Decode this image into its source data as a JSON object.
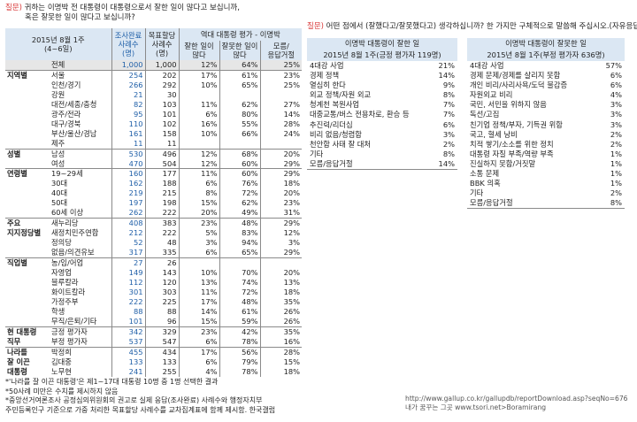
{
  "question_left": {
    "tag": "질문)",
    "line1": "귀하는 이명박 전 대통령이 대통령으로서 잘한 일이 많다고 보십니까,",
    "line2": "혹은 잘못한 일이 많다고 보십니까?"
  },
  "question_right": {
    "tag": "질문)",
    "text": "어떤 점에서 (잘했다고/잘못했다고) 생각하십니까? 한 가지만 구체적으로 말씀해 주십시오.(자유응답)"
  },
  "left_table": {
    "period": "2015년 8월 1주",
    "period_sub": "(4~6일)",
    "col_sample": [
      "조사완료",
      "사례수",
      "(명)"
    ],
    "col_target": [
      "목표할당",
      "사례수",
      "(명)"
    ],
    "col_group": "역대 대통령 평가 - 이명박",
    "col_good": [
      "잘한 일이",
      "많다"
    ],
    "col_bad": [
      "잘못한 일이",
      "많다"
    ],
    "col_dk": [
      "모름/",
      "응답거절"
    ],
    "rows": [
      {
        "cat": "",
        "label": "전체",
        "n": "1,000",
        "t": "1,000",
        "good": "12%",
        "bad": "64%",
        "dk": "25%",
        "total": true
      },
      {
        "cat": "지역별",
        "label": "서울",
        "n": "254",
        "t": "202",
        "good": "17%",
        "bad": "61%",
        "dk": "23%",
        "sep": true
      },
      {
        "cat": "",
        "label": "인천/경기",
        "n": "266",
        "t": "292",
        "good": "10%",
        "bad": "65%",
        "dk": "25%"
      },
      {
        "cat": "",
        "label": "강원",
        "n": "21",
        "t": "30",
        "good": "",
        "bad": "",
        "dk": ""
      },
      {
        "cat": "",
        "label": "대전/세종/충청",
        "n": "82",
        "t": "103",
        "good": "11%",
        "bad": "62%",
        "dk": "27%"
      },
      {
        "cat": "",
        "label": "광주/전라",
        "n": "95",
        "t": "101",
        "good": "6%",
        "bad": "80%",
        "dk": "14%"
      },
      {
        "cat": "",
        "label": "대구/경북",
        "n": "110",
        "t": "102",
        "good": "16%",
        "bad": "55%",
        "dk": "28%"
      },
      {
        "cat": "",
        "label": "부산/울산/경남",
        "n": "161",
        "t": "158",
        "good": "10%",
        "bad": "66%",
        "dk": "24%"
      },
      {
        "cat": "",
        "label": "제주",
        "n": "11",
        "t": "11",
        "good": "",
        "bad": "",
        "dk": ""
      },
      {
        "cat": "성별",
        "label": "남성",
        "n": "530",
        "t": "496",
        "good": "12%",
        "bad": "68%",
        "dk": "20%",
        "sep": true
      },
      {
        "cat": "",
        "label": "여성",
        "n": "470",
        "t": "504",
        "good": "12%",
        "bad": "60%",
        "dk": "29%"
      },
      {
        "cat": "연령별",
        "label": "19~29세",
        "n": "160",
        "t": "177",
        "good": "11%",
        "bad": "60%",
        "dk": "29%",
        "sep": true
      },
      {
        "cat": "",
        "label": "30대",
        "n": "162",
        "t": "188",
        "good": "6%",
        "bad": "76%",
        "dk": "18%"
      },
      {
        "cat": "",
        "label": "40대",
        "n": "219",
        "t": "215",
        "good": "8%",
        "bad": "72%",
        "dk": "20%"
      },
      {
        "cat": "",
        "label": "50대",
        "n": "197",
        "t": "198",
        "good": "15%",
        "bad": "62%",
        "dk": "23%"
      },
      {
        "cat": "",
        "label": "60세 이상",
        "n": "262",
        "t": "222",
        "good": "20%",
        "bad": "49%",
        "dk": "31%"
      },
      {
        "cat": "주요",
        "label": "새누리당",
        "n": "408",
        "t": "383",
        "good": "23%",
        "bad": "48%",
        "dk": "29%",
        "sep": true
      },
      {
        "cat": "지지정당별",
        "label": "새정치민주연합",
        "n": "212",
        "t": "222",
        "good": "5%",
        "bad": "83%",
        "dk": "12%"
      },
      {
        "cat": "",
        "label": "정의당",
        "n": "52",
        "t": "48",
        "good": "3%",
        "bad": "94%",
        "dk": "3%"
      },
      {
        "cat": "",
        "label": "없음/의견유보",
        "n": "317",
        "t": "335",
        "good": "6%",
        "bad": "65%",
        "dk": "29%"
      },
      {
        "cat": "직업별",
        "label": "농/임/어업",
        "n": "27",
        "t": "26",
        "good": "",
        "bad": "",
        "dk": "",
        "sep": true
      },
      {
        "cat": "",
        "label": "자영업",
        "n": "149",
        "t": "143",
        "good": "10%",
        "bad": "70%",
        "dk": "20%"
      },
      {
        "cat": "",
        "label": "블루칼라",
        "n": "112",
        "t": "120",
        "good": "13%",
        "bad": "74%",
        "dk": "13%"
      },
      {
        "cat": "",
        "label": "화이트칼라",
        "n": "301",
        "t": "303",
        "good": "11%",
        "bad": "72%",
        "dk": "18%"
      },
      {
        "cat": "",
        "label": "가정주부",
        "n": "222",
        "t": "225",
        "good": "17%",
        "bad": "48%",
        "dk": "35%"
      },
      {
        "cat": "",
        "label": "학생",
        "n": "88",
        "t": "88",
        "good": "14%",
        "bad": "61%",
        "dk": "26%"
      },
      {
        "cat": "",
        "label": "무직/은퇴/기타",
        "n": "101",
        "t": "96",
        "good": "15%",
        "bad": "59%",
        "dk": "26%"
      },
      {
        "cat": "현 대통령",
        "label": "긍정 평가자",
        "n": "342",
        "t": "329",
        "good": "23%",
        "bad": "42%",
        "dk": "35%",
        "sep": true
      },
      {
        "cat": "직무",
        "label": "부정 평가자",
        "n": "537",
        "t": "547",
        "good": "6%",
        "bad": "78%",
        "dk": "16%"
      },
      {
        "cat": "나라를",
        "label": "박정희",
        "n": "455",
        "t": "434",
        "good": "17%",
        "bad": "56%",
        "dk": "28%",
        "sep": true
      },
      {
        "cat": "잘 이끈",
        "label": "김대중",
        "n": "133",
        "t": "133",
        "good": "6%",
        "bad": "79%",
        "dk": "15%"
      },
      {
        "cat": "대통령",
        "label": "노무현",
        "n": "241",
        "t": "255",
        "good": "4%",
        "bad": "78%",
        "dk": "18%"
      }
    ]
  },
  "good_table": {
    "title": "이명박 대통령이 잘한 일",
    "subtitle": "2015년 8월 1주(긍정 평가자 119명)",
    "rows": [
      {
        "label": "4대강 사업",
        "value": "21%"
      },
      {
        "label": "경제 정책",
        "value": "14%"
      },
      {
        "label": "열심히 한다",
        "value": "9%"
      },
      {
        "label": "외교 정책/자원 외교",
        "value": "8%"
      },
      {
        "label": "청계천 복원사업",
        "value": "7%"
      },
      {
        "label": "대중교통/버스 전용차로, 환승 등",
        "value": "7%"
      },
      {
        "label": "추진력/리더십",
        "value": "6%"
      },
      {
        "label": "비리 없음/청렴함",
        "value": "3%"
      },
      {
        "label": "천안함 사태 잘 대처",
        "value": "2%"
      },
      {
        "label": "기타",
        "value": "8%"
      },
      {
        "label": "모름/응답거절",
        "value": "14%"
      }
    ]
  },
  "bad_table": {
    "title": "이명박 대통령이 잘못한 일",
    "subtitle": "2015년 8월 1주(부정 평가자 636명)",
    "rows": [
      {
        "label": "4대강 사업",
        "value": "57%"
      },
      {
        "label": "경제 문제/경제를 살리지 못함",
        "value": "6%"
      },
      {
        "label": "개인 비리/사리사욕/도덕 불감증",
        "value": "6%"
      },
      {
        "label": "자원외교 비리",
        "value": "4%"
      },
      {
        "label": "국민, 서민을 위하지 않음",
        "value": "3%"
      },
      {
        "label": "독선/고집",
        "value": "3%"
      },
      {
        "label": "친기업 정책/부자, 기득권 위함",
        "value": "3%"
      },
      {
        "label": "국고, 혈세 낭비",
        "value": "2%"
      },
      {
        "label": "치적 쌓기/소소를 위한 정치",
        "value": "2%"
      },
      {
        "label": "대통령 자질 부족/역량 부족",
        "value": "1%"
      },
      {
        "label": "진실하지 못함/거짓말",
        "value": "1%"
      },
      {
        "label": "소통 문제",
        "value": "1%"
      },
      {
        "label": "BBK 의혹",
        "value": "1%"
      },
      {
        "label": "기타",
        "value": "2%"
      },
      {
        "label": "모름/응답거절",
        "value": "8%"
      }
    ]
  },
  "notes": [
    "*'나라를 잘 이끈 대통령'은 제1~17대 대통령 10명 중 1명 선택한 결과",
    "*50사례 미만은 수치를 제시하지 않음",
    "*중앙선거여론조사 공정심의위원회의 권고로 실제 응답(조사완료) 사례수와  행정자치부",
    "  주민등록인구 기준으로 가중 처리한 목표할당 사례수를 교차집계표에 함께 제시함. 한국갤럽"
  ],
  "source": {
    "url": "http://www.gallup.co.kr/gallupdb/reportDownload.asp?seqNo=676",
    "credit": "내가 꿈꾸는 그곳 www.tsori.net>Boramirang"
  },
  "colors": {
    "header_bg": "#dbe7f3",
    "question_tag": "#d93a3a",
    "total_bg": "#e6e6e6",
    "blue_text": "#1f5fa8"
  }
}
